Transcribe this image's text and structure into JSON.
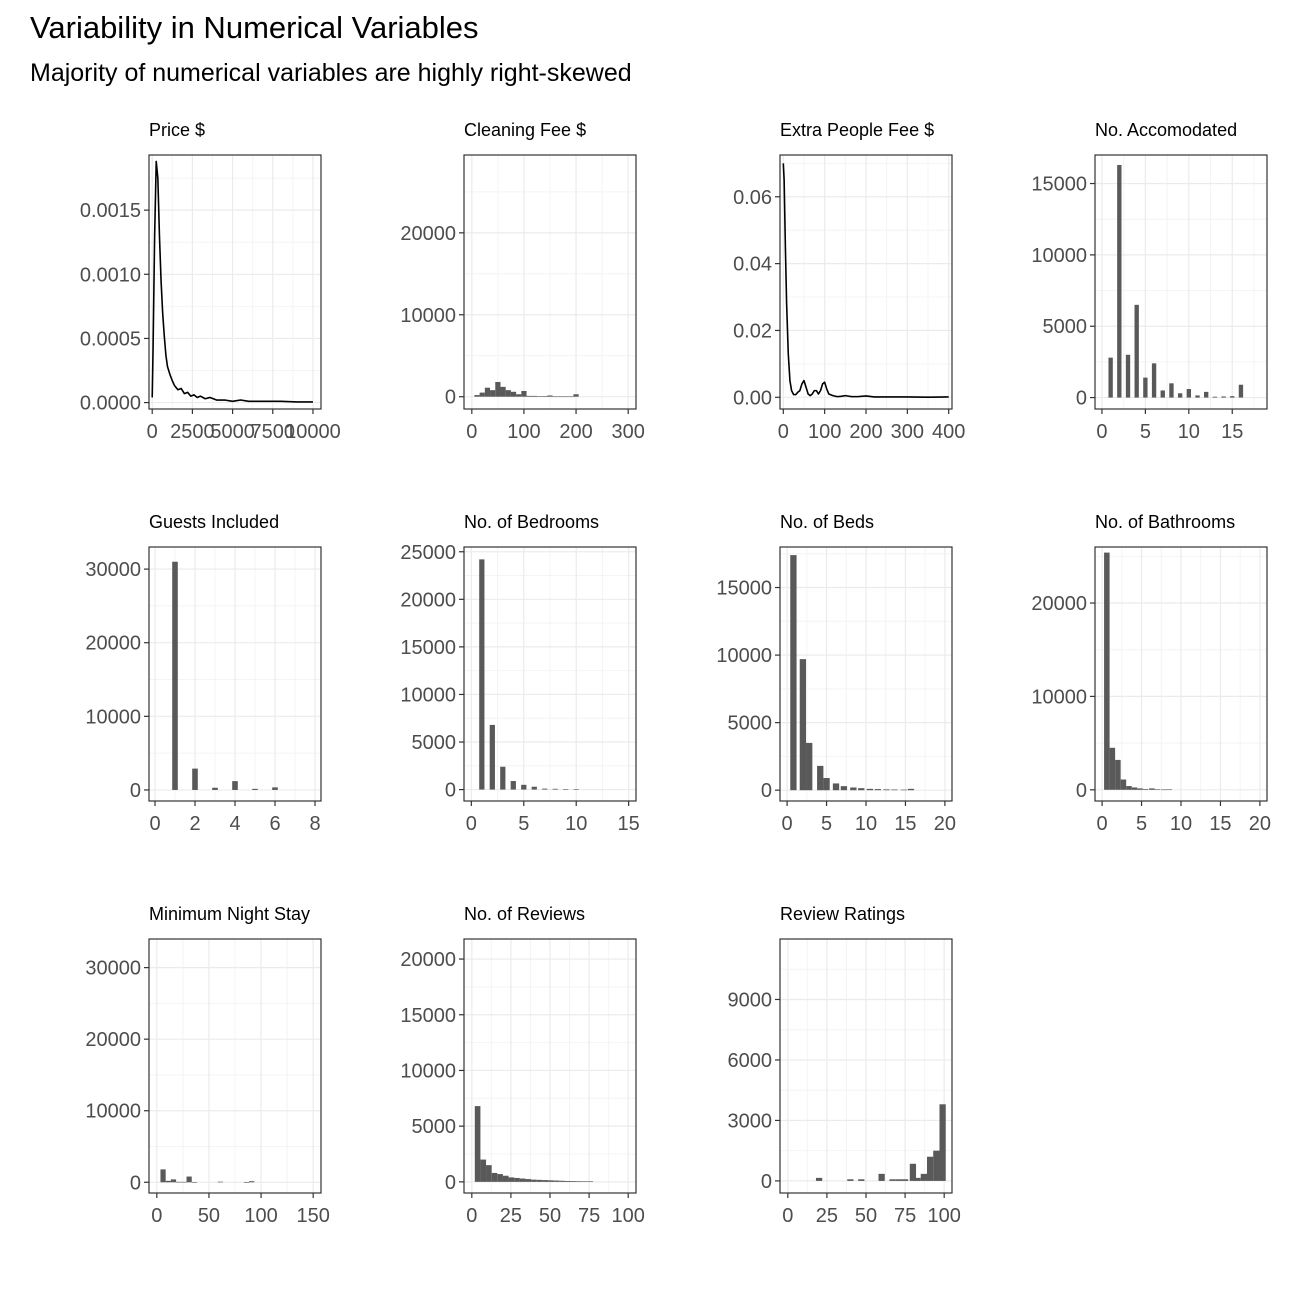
{
  "page": {
    "title": "Variability in Numerical Variables",
    "subtitle": "Majority of numerical variables are highly right-skewed"
  },
  "colors": {
    "bar_fill": "#595959",
    "density_line": "#000000",
    "grid_major": "#ebebeb",
    "grid_minor": "#f4f4f4",
    "panel_border": "#333333",
    "tick_text": "#4d4d4d"
  },
  "chart_data": [
    {
      "type": "area",
      "title": "Price $",
      "xlim": [
        -200,
        10500
      ],
      "ylim": [
        -5e-05,
        0.00193
      ],
      "x_ticks": [
        0,
        2500,
        5000,
        7500,
        10000
      ],
      "x_tick_labels": [
        "0",
        "2500",
        "5000",
        "7500",
        "10000"
      ],
      "y_ticks": [
        0,
        0.0005,
        0.001,
        0.0015
      ],
      "y_tick_labels": [
        "0.0000",
        "0.0005",
        "0.0010",
        "0.0015"
      ],
      "grid": true,
      "x": [
        0,
        50,
        150,
        250,
        350,
        450,
        550,
        650,
        750,
        850,
        950,
        1100,
        1250,
        1400,
        1600,
        1800,
        2000,
        2200,
        2400,
        2600,
        2800,
        3000,
        3300,
        3600,
        4000,
        4500,
        5000,
        5500,
        6000,
        7000,
        8000,
        9000,
        10000
      ],
      "y": [
        4e-05,
        0.0004,
        0.0013,
        0.00188,
        0.00175,
        0.0013,
        0.00095,
        0.0007,
        0.00052,
        0.00037,
        0.00028,
        0.00022,
        0.00017,
        0.00013,
        0.0001,
        0.00011,
        7e-05,
        8e-05,
        5e-05,
        6e-05,
        4e-05,
        5e-05,
        3e-05,
        4e-05,
        2e-05,
        2e-05,
        1e-05,
        2e-05,
        1e-05,
        1e-05,
        1e-05,
        5e-06,
        5e-06
      ]
    },
    {
      "type": "bar",
      "title": "Cleaning Fee $",
      "xlim": [
        -15,
        315
      ],
      "ylim": [
        -1500,
        29500
      ],
      "x_ticks": [
        0,
        100,
        200,
        300
      ],
      "x_tick_labels": [
        "0",
        "100",
        "200",
        "300"
      ],
      "y_ticks": [
        0,
        10000,
        20000
      ],
      "y_tick_labels": [
        "0",
        "10000",
        "20000"
      ],
      "grid": true,
      "bin_width": 10,
      "bin_centers": [
        10,
        20,
        30,
        40,
        50,
        60,
        70,
        80,
        90,
        100,
        110,
        120,
        130,
        140,
        150,
        160,
        170,
        180,
        190,
        200
      ],
      "values": [
        200,
        500,
        1100,
        800,
        1800,
        1200,
        800,
        600,
        300,
        700,
        100,
        100,
        50,
        80,
        150,
        30,
        30,
        30,
        30,
        300
      ]
    },
    {
      "type": "area",
      "title": "Extra People Fee $",
      "xlim": [
        -8,
        408
      ],
      "ylim": [
        -0.0035,
        0.0725
      ],
      "x_ticks": [
        0,
        100,
        200,
        300,
        400
      ],
      "x_tick_labels": [
        "0",
        "100",
        "200",
        "300",
        "400"
      ],
      "y_ticks": [
        0,
        0.02,
        0.04,
        0.06
      ],
      "y_tick_labels": [
        "0.00",
        "0.02",
        "0.04",
        "0.06"
      ],
      "grid": true,
      "x": [
        0,
        2,
        5,
        8,
        12,
        16,
        20,
        25,
        30,
        35,
        40,
        45,
        50,
        55,
        60,
        65,
        70,
        75,
        80,
        85,
        90,
        95,
        100,
        105,
        110,
        120,
        130,
        140,
        150,
        165,
        180,
        200,
        220,
        250,
        300,
        350,
        400
      ],
      "y": [
        0.07,
        0.065,
        0.045,
        0.028,
        0.013,
        0.005,
        0.002,
        0.0008,
        0.0008,
        0.0015,
        0.002,
        0.004,
        0.005,
        0.003,
        0.001,
        0.0005,
        0.001,
        0.002,
        0.002,
        0.001,
        0.002,
        0.004,
        0.0045,
        0.0025,
        0.001,
        0.0005,
        0.0002,
        0.0003,
        0.0005,
        0.0002,
        0.0002,
        0.0004,
        0.0001,
        0.0001,
        0.0001,
        5e-05,
        0.0001
      ]
    },
    {
      "type": "bar",
      "title": "No. Accomodated",
      "xlim": [
        -0.8,
        19
      ],
      "ylim": [
        -800,
        17000
      ],
      "x_ticks": [
        0,
        5,
        10,
        15
      ],
      "x_tick_labels": [
        "0",
        "5",
        "10",
        "15"
      ],
      "y_ticks": [
        0,
        5000,
        10000,
        15000
      ],
      "y_tick_labels": [
        "0",
        "5000",
        "10000",
        "15000"
      ],
      "grid": true,
      "bin_width": 0.5,
      "bin_centers": [
        1,
        1.5,
        2,
        2.5,
        3,
        3.5,
        4,
        4.5,
        5,
        5.5,
        6,
        6.5,
        7,
        7.5,
        8,
        8.5,
        9,
        9.5,
        10,
        10.5,
        11,
        11.5,
        12,
        12.5,
        13,
        13.5,
        14,
        14.5,
        15,
        15.5,
        16
      ],
      "values": [
        2800,
        0,
        16300,
        0,
        3000,
        0,
        6500,
        0,
        1400,
        0,
        2400,
        0,
        500,
        0,
        1000,
        0,
        300,
        0,
        600,
        0,
        150,
        0,
        400,
        0,
        60,
        0,
        80,
        0,
        100,
        0,
        900
      ]
    },
    {
      "type": "bar",
      "title": "Guests Included",
      "xlim": [
        -0.3,
        8.3
      ],
      "ylim": [
        -1500,
        33000
      ],
      "x_ticks": [
        0,
        2,
        4,
        6,
        8
      ],
      "x_tick_labels": [
        "0",
        "2",
        "4",
        "6",
        "8"
      ],
      "y_ticks": [
        0,
        10000,
        20000,
        30000
      ],
      "y_tick_labels": [
        "0",
        "10000",
        "20000",
        "30000"
      ],
      "grid": true,
      "bin_width": 0.28,
      "bin_centers": [
        1,
        2,
        3,
        4,
        5,
        6
      ],
      "values": [
        31000,
        2900,
        300,
        1200,
        150,
        350
      ]
    },
    {
      "type": "bar",
      "title": "No. of Bedrooms",
      "xlim": [
        -0.7,
        15.7
      ],
      "ylim": [
        -1200,
        25500
      ],
      "x_ticks": [
        0,
        5,
        10,
        15
      ],
      "x_tick_labels": [
        "0",
        "5",
        "10",
        "15"
      ],
      "y_ticks": [
        0,
        5000,
        10000,
        15000,
        20000,
        25000
      ],
      "y_tick_labels": [
        "0",
        "5000",
        "10000",
        "15000",
        "20000",
        "25000"
      ],
      "grid": true,
      "bin_width": 0.5,
      "bin_centers": [
        0.5,
        1,
        1.5,
        2,
        2.5,
        3,
        3.5,
        4,
        4.5,
        5,
        5.5,
        6,
        6.5,
        7,
        7.5,
        8,
        8.5,
        9,
        9.5,
        10
      ],
      "values": [
        0,
        24200,
        0,
        6800,
        0,
        2400,
        0,
        900,
        0,
        500,
        0,
        300,
        0,
        100,
        0,
        80,
        0,
        40,
        0,
        30
      ]
    },
    {
      "type": "bar",
      "title": "No. of Beds",
      "xlim": [
        -0.9,
        20.9
      ],
      "ylim": [
        -800,
        18000
      ],
      "x_ticks": [
        0,
        5,
        10,
        15,
        20
      ],
      "x_tick_labels": [
        "0",
        "5",
        "10",
        "15",
        "20"
      ],
      "y_ticks": [
        0,
        5000,
        10000,
        15000
      ],
      "y_tick_labels": [
        "0",
        "5000",
        "10000",
        "15000"
      ],
      "grid": true,
      "bin_width": 0.8,
      "bin_centers": [
        0.8,
        2.0,
        2.8,
        4.2,
        5.0,
        6.2,
        7.2,
        8.4,
        9.4,
        10.5,
        11.5,
        12.6,
        13.6,
        14.8,
        15.7
      ],
      "values": [
        17400,
        9700,
        3500,
        1800,
        900,
        500,
        300,
        200,
        150,
        100,
        80,
        60,
        50,
        40,
        100
      ]
    },
    {
      "type": "bar",
      "title": "No. of Bathrooms",
      "xlim": [
        -0.9,
        20.9
      ],
      "ylim": [
        -1200,
        26000
      ],
      "x_ticks": [
        0,
        5,
        10,
        15,
        20
      ],
      "x_tick_labels": [
        "0",
        "5",
        "10",
        "15",
        "20"
      ],
      "y_ticks": [
        0,
        10000,
        20000
      ],
      "y_tick_labels": [
        "0",
        "10000",
        "20000"
      ],
      "grid": true,
      "bin_width": 0.7,
      "bin_centers": [
        0.6,
        1.3,
        2.0,
        2.7,
        3.4,
        4.1,
        4.8,
        5.5,
        6.3,
        7.0,
        7.8,
        8.5
      ],
      "values": [
        25400,
        4500,
        3200,
        1100,
        400,
        250,
        150,
        80,
        150,
        40,
        30,
        40
      ]
    },
    {
      "type": "bar",
      "title": "Minimum Night Stay",
      "xlim": [
        -7.5,
        157.5
      ],
      "ylim": [
        -1500,
        34000
      ],
      "x_ticks": [
        0,
        50,
        100,
        150
      ],
      "x_tick_labels": [
        "0",
        "50",
        "100",
        "150"
      ],
      "y_ticks": [
        0,
        10000,
        20000,
        30000
      ],
      "y_tick_labels": [
        "0",
        "10000",
        "20000",
        "30000"
      ],
      "grid": true,
      "bin_width": 5,
      "bin_centers": [
        6,
        11,
        16,
        21,
        26,
        31,
        36,
        61,
        86,
        91
      ],
      "values": [
        1800,
        200,
        400,
        60,
        60,
        800,
        40,
        80,
        30,
        150
      ]
    },
    {
      "type": "bar",
      "title": "No. of Reviews",
      "xlim": [
        -5,
        105
      ],
      "ylim": [
        -1000,
        21800
      ],
      "x_ticks": [
        0,
        25,
        50,
        75,
        100
      ],
      "x_tick_labels": [
        "0",
        "25",
        "50",
        "75",
        "100"
      ],
      "y_ticks": [
        0,
        5000,
        10000,
        15000,
        20000
      ],
      "y_tick_labels": [
        "0",
        "5000",
        "10000",
        "15000",
        "20000"
      ],
      "grid": true,
      "bin_width": 3.6,
      "bin_centers": [
        3.7,
        7.3,
        10.9,
        14.5,
        18.1,
        21.7,
        25.3,
        28.9,
        32.5,
        36.1,
        39.7,
        43.3,
        46.9,
        50.5,
        54.1,
        57.7,
        61.3,
        64.9,
        68.5,
        72.1,
        75.7
      ],
      "values": [
        6800,
        2000,
        1500,
        800,
        700,
        550,
        400,
        350,
        300,
        250,
        200,
        180,
        160,
        140,
        120,
        100,
        80,
        70,
        60,
        50,
        40
      ]
    },
    {
      "type": "bar",
      "title": "Review Ratings",
      "xlim": [
        -5,
        105
      ],
      "ylim": [
        -600,
        12000
      ],
      "x_ticks": [
        0,
        25,
        50,
        75,
        100
      ],
      "x_tick_labels": [
        "0",
        "25",
        "50",
        "75",
        "100"
      ],
      "y_ticks": [
        0,
        3000,
        6000,
        9000
      ],
      "y_tick_labels": [
        "0",
        "3000",
        "6000",
        "9000"
      ],
      "grid": true,
      "bin_width": 4,
      "bin_centers": [
        20,
        40,
        47,
        60,
        67,
        71,
        75,
        80,
        83,
        87,
        91,
        95,
        99
      ],
      "values": [
        150,
        80,
        80,
        350,
        80,
        80,
        80,
        850,
        150,
        350,
        1200,
        1500,
        3800
      ]
    }
  ]
}
